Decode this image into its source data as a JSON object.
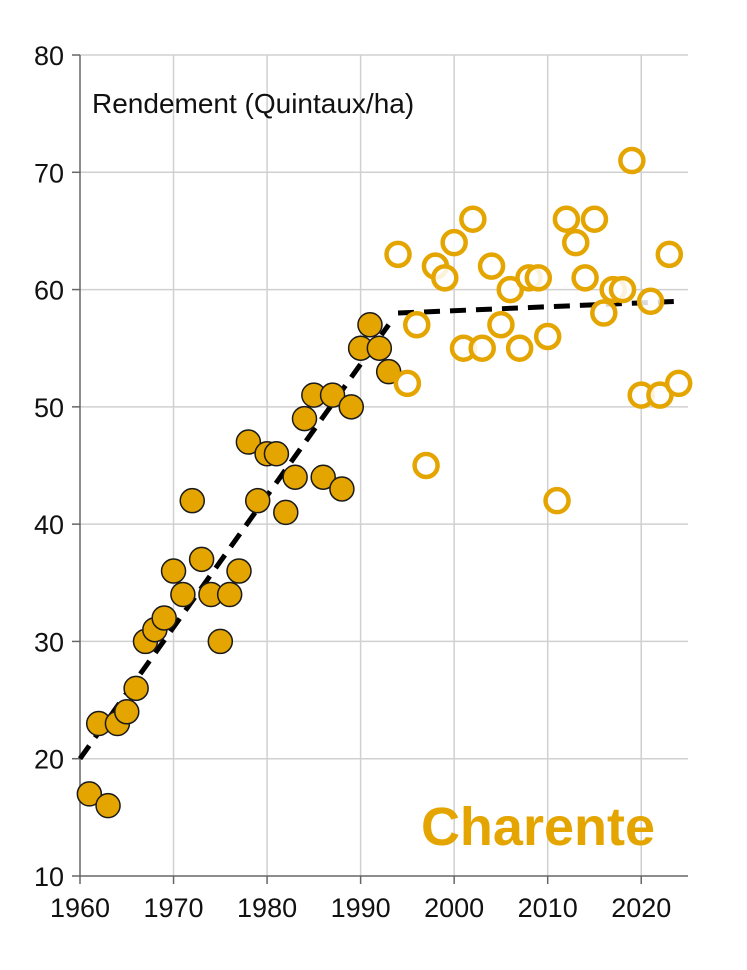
{
  "chart_data": {
    "type": "scatter",
    "title": "",
    "ylabel": "Rendement (Quintaux/ha)",
    "xlabel": "",
    "annotation": "Charente",
    "xlim": [
      1960,
      2025
    ],
    "ylim": [
      10,
      80
    ],
    "xticks": [
      1960,
      1970,
      1980,
      1990,
      2000,
      2010,
      2020
    ],
    "yticks": [
      10,
      20,
      30,
      40,
      50,
      60,
      70,
      80
    ],
    "grid": true,
    "colors": {
      "marker": "#e5a500",
      "trend": "#000000",
      "grid": "#d0d0d0",
      "axis": "#666666"
    },
    "series": [
      {
        "style": "filled",
        "points": [
          [
            1961,
            17
          ],
          [
            1962,
            23
          ],
          [
            1963,
            16
          ],
          [
            1964,
            23
          ],
          [
            1965,
            24
          ],
          [
            1966,
            26
          ],
          [
            1967,
            30
          ],
          [
            1968,
            31
          ],
          [
            1969,
            32
          ],
          [
            1970,
            36
          ],
          [
            1971,
            34
          ],
          [
            1972,
            42
          ],
          [
            1973,
            37
          ],
          [
            1974,
            34
          ],
          [
            1975,
            30
          ],
          [
            1976,
            34
          ],
          [
            1977,
            36
          ],
          [
            1978,
            47
          ],
          [
            1979,
            42
          ],
          [
            1980,
            46
          ],
          [
            1981,
            46
          ],
          [
            1982,
            41
          ],
          [
            1983,
            44
          ],
          [
            1984,
            49
          ],
          [
            1985,
            51
          ],
          [
            1986,
            44
          ],
          [
            1987,
            51
          ],
          [
            1988,
            43
          ],
          [
            1989,
            50
          ],
          [
            1990,
            55
          ],
          [
            1991,
            57
          ],
          [
            1992,
            55
          ],
          [
            1993,
            53
          ]
        ]
      },
      {
        "style": "open",
        "points": [
          [
            1994,
            63
          ],
          [
            1995,
            52
          ],
          [
            1996,
            57
          ],
          [
            1997,
            45
          ],
          [
            1998,
            62
          ],
          [
            1999,
            61
          ],
          [
            2000,
            64
          ],
          [
            2001,
            55
          ],
          [
            2002,
            66
          ],
          [
            2003,
            55
          ],
          [
            2004,
            62
          ],
          [
            2005,
            57
          ],
          [
            2006,
            60
          ],
          [
            2007,
            55
          ],
          [
            2008,
            61
          ],
          [
            2009,
            61
          ],
          [
            2010,
            56
          ],
          [
            2011,
            42
          ],
          [
            2012,
            66
          ],
          [
            2013,
            64
          ],
          [
            2014,
            61
          ],
          [
            2015,
            66
          ],
          [
            2016,
            58
          ],
          [
            2017,
            60
          ],
          [
            2018,
            60
          ],
          [
            2019,
            71
          ],
          [
            2020,
            51
          ],
          [
            2021,
            59
          ],
          [
            2022,
            51
          ],
          [
            2023,
            63
          ],
          [
            2024,
            52
          ]
        ]
      }
    ],
    "trendlines": [
      {
        "style": "dashed",
        "from": [
          1960,
          20
        ],
        "to": [
          1993,
          57
        ]
      },
      {
        "style": "dashed",
        "from": [
          1994,
          58
        ],
        "to": [
          2024,
          59
        ]
      }
    ]
  }
}
